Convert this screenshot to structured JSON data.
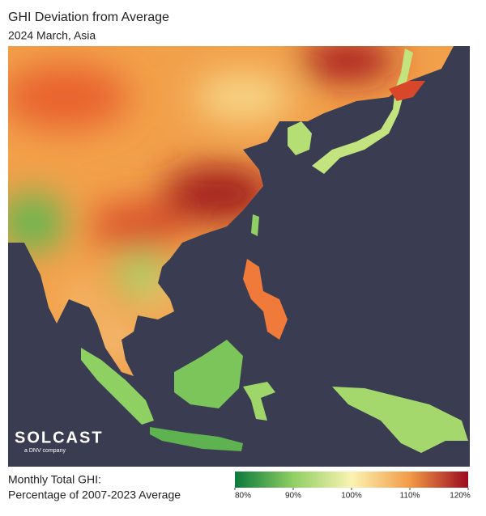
{
  "header": {
    "title": "GHI Deviation from Average",
    "subtitle": "2024 March, Asia"
  },
  "logo": {
    "name": "SOLCAST",
    "tagline": "a DNV company"
  },
  "legend": {
    "lines": [
      "Monthly Total GHI:",
      "Percentage of 2007-2023 Average"
    ],
    "range": [
      80,
      120
    ],
    "colors": [
      "#0b7a3b",
      "#8fcf63",
      "#fbf3b2",
      "#f39a46",
      "#9b0b1f"
    ],
    "ticks": [
      {
        "value": 80,
        "label": "80%"
      },
      {
        "value": 90,
        "label": "90%"
      },
      {
        "value": 100,
        "label": "100%"
      },
      {
        "value": 110,
        "label": "110%"
      },
      {
        "value": 120,
        "label": "120%"
      }
    ]
  }
}
